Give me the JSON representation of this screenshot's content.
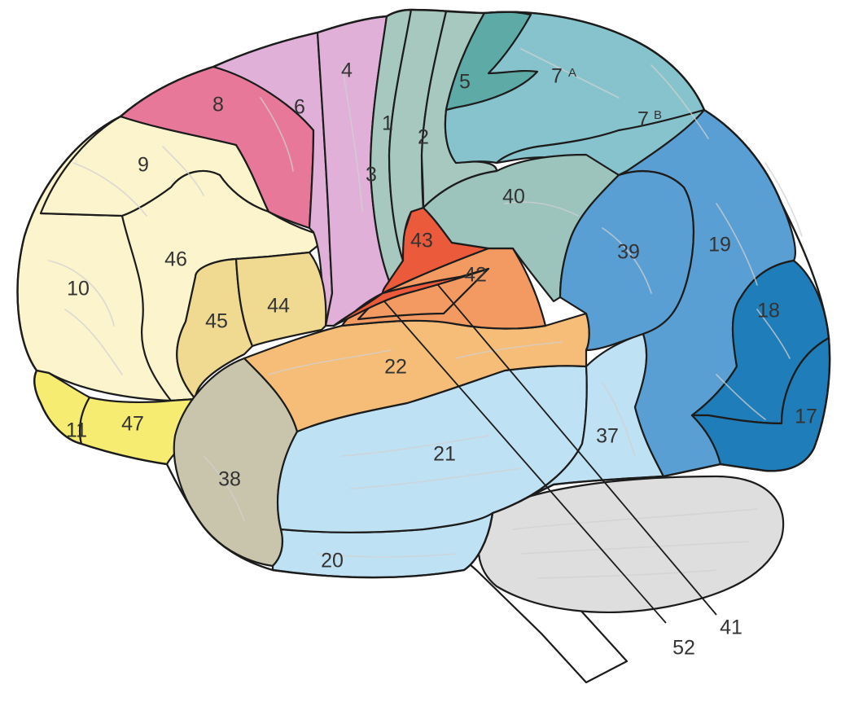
{
  "labels": {
    "a1": "1",
    "a2": "2",
    "a3": "3",
    "a4": "4",
    "a5": "5",
    "a6": "6",
    "a7a": "7",
    "a7a_sup": "A",
    "a7b": "7",
    "a7b_sup": "B",
    "a8": "8",
    "a9": "9",
    "a10": "10",
    "a11": "11",
    "a17": "17",
    "a18": "18",
    "a19": "19",
    "a20": "20",
    "a21": "21",
    "a22": "22",
    "a37": "37",
    "a38": "38",
    "a39": "39",
    "a40": "40",
    "a41": "41",
    "a42": "42",
    "a43": "43",
    "a44": "44",
    "a45": "45",
    "a46": "46",
    "a47": "47",
    "a52": "52"
  },
  "colors": {
    "prefrontal": "#fbf4cd",
    "frontal_eye": "#e8789a",
    "premotor": "#e0b0d8",
    "motor_sensory": "#a6c8bf",
    "area5": "#5eaaa6",
    "parietal": "#86c3cc",
    "area40": "#9cc3bc",
    "area39_19": "#5a9fd4",
    "area18_17": "#1f7dba",
    "broca": "#f0da92",
    "orbital": "#f6ec72",
    "auditory": "#f5bd78",
    "area42": "#f39a62",
    "area43": "#ec5a3c",
    "temporal": "#bee1f4",
    "area38": "#c9c5ac",
    "cerebellum": "#dedede",
    "brainstem": "#ffffff"
  }
}
